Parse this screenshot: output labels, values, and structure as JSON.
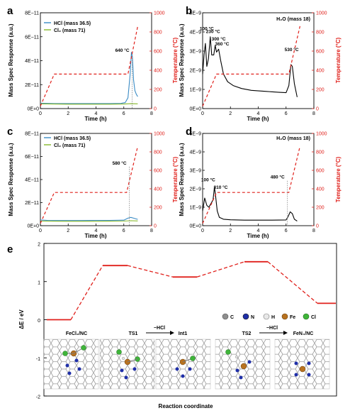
{
  "chart_data": [
    {
      "panel": "a",
      "type": "line",
      "xlabel": "Time (h)",
      "ylabel": "Mass Spec Response (a.u.)",
      "y2label": "Temperature (°C)",
      "xlim": [
        0,
        8
      ],
      "ylim": [
        0,
        8e-11
      ],
      "y2lim": [
        0,
        1000
      ],
      "xticks": [
        "0",
        "2",
        "4",
        "6",
        "8"
      ],
      "yticks": [
        "0E+0",
        "2E−11",
        "4E−11",
        "6E−11",
        "8E−11"
      ],
      "y2ticks": [
        "0",
        "200",
        "400",
        "600",
        "800",
        "1000"
      ],
      "series": [
        {
          "name": "HCl (mass 36.5)",
          "color": "#3a8bc4",
          "axis": "left",
          "x": [
            0,
            0.5,
            1,
            2,
            3,
            4,
            5,
            5.8,
            6.1,
            6.3,
            6.45,
            6.55,
            6.62,
            6.7,
            6.8,
            6.9,
            7.0
          ],
          "y": [
            4.5e-12,
            4.3e-12,
            4.2e-12,
            4.2e-12,
            4.2e-12,
            4.2e-12,
            4.2e-12,
            4.3e-12,
            5e-12,
            9e-12,
            2.8e-11,
            4.7e-11,
            4.3e-11,
            2.4e-11,
            1.5e-11,
            1.2e-11,
            1e-11
          ]
        },
        {
          "name": "Cl2 (mass 71)",
          "color": "#86b92b",
          "axis": "left",
          "x": [
            0,
            1,
            2,
            3,
            4,
            5,
            6,
            6.5,
            7.0
          ],
          "y": [
            4e-12,
            3.8e-12,
            3.7e-12,
            3.7e-12,
            3.7e-12,
            3.7e-12,
            3.8e-12,
            4.1e-12,
            4e-12
          ]
        },
        {
          "name": "Temperature",
          "color": "#e0201b",
          "axis": "right",
          "dash": true,
          "x": [
            0,
            1,
            6.3,
            7.0
          ],
          "y": [
            25,
            360,
            360,
            860
          ]
        }
      ],
      "annotations": [
        {
          "text": "640 °C",
          "x": 6.6,
          "y": 4.75e-11,
          "vline": true
        }
      ]
    },
    {
      "panel": "b",
      "type": "line",
      "xlabel": "Time (h)",
      "ylabel": "Mass Spec Response (a.u.)",
      "y2label": "Temperature (°C)",
      "xlim": [
        0,
        8
      ],
      "ylim": [
        0,
        5e-09
      ],
      "y2lim": [
        0,
        1000
      ],
      "xticks": [
        "0",
        "2",
        "4",
        "6",
        "8"
      ],
      "yticks": [
        "0E+0",
        "1E−9",
        "2E−9",
        "3E−9",
        "4E−9",
        "5E−9"
      ],
      "y2ticks": [
        "0",
        "200",
        "400",
        "600",
        "800",
        "1000"
      ],
      "legend_text": "H₂O (mass 18)",
      "series": [
        {
          "name": "H2O (mass 18)",
          "color": "#000000",
          "axis": "left",
          "x": [
            0,
            0.1,
            0.2,
            0.3,
            0.42,
            0.55,
            0.65,
            0.8,
            0.9,
            1.0,
            1.15,
            1.3,
            1.5,
            1.8,
            2.2,
            2.8,
            3.5,
            4.5,
            5.5,
            6.0,
            6.2,
            6.35,
            6.45,
            6.6,
            6.8
          ],
          "y": [
            1.8e-09,
            2.8e-09,
            3.4e-09,
            2.2e-09,
            2.6e-09,
            3.75e-09,
            2.8e-09,
            2.8e-09,
            3.3e-09,
            2.95e-09,
            3.1e-09,
            2.5e-09,
            1.8e-09,
            1.4e-09,
            1.2e-09,
            1.05e-09,
            9.5e-10,
            9e-10,
            8.5e-10,
            8.3e-10,
            1.2e-09,
            2.3e-09,
            2.2e-09,
            1.3e-09,
            6e-10
          ]
        },
        {
          "name": "Temperature",
          "color": "#e0201b",
          "axis": "right",
          "dash": true,
          "x": [
            0,
            1,
            6.2,
            7.0
          ],
          "y": [
            25,
            360,
            360,
            860
          ]
        }
      ],
      "annotations": [
        {
          "text": "100 °C",
          "x": 0.3,
          "y": 4.1e-09
        },
        {
          "text": "230 °C",
          "x": 0.75,
          "y": 3.95e-09
        },
        {
          "text": "300 °C",
          "x": 1.15,
          "y": 3.55e-09
        },
        {
          "text": "360 °C",
          "x": 1.4,
          "y": 3.3e-09
        },
        {
          "text": "530 °C",
          "x": 6.4,
          "y": 3e-09
        }
      ]
    },
    {
      "panel": "c",
      "type": "line",
      "xlabel": "Time (h)",
      "ylabel": "Mass Spec Response (a.u.)",
      "y2label": "Temperature (°C)",
      "xlim": [
        0,
        8
      ],
      "ylim": [
        0,
        8e-11
      ],
      "y2lim": [
        0,
        1000
      ],
      "xticks": [
        "0",
        "2",
        "4",
        "6",
        "8"
      ],
      "yticks": [
        "0E+0",
        "2E−11",
        "4E−11",
        "6E−11",
        "8E−11"
      ],
      "y2ticks": [
        "0",
        "200",
        "400",
        "600",
        "800",
        "1000"
      ],
      "series": [
        {
          "name": "HCl (mass 36.5)",
          "color": "#3a8bc4",
          "axis": "left",
          "x": [
            0,
            0.5,
            1,
            2,
            3,
            4,
            5,
            6,
            6.3,
            6.5,
            6.7,
            7.0
          ],
          "y": [
            5e-12,
            4.6e-12,
            4.5e-12,
            4.5e-12,
            4.5e-12,
            4.6e-12,
            4.6e-12,
            4.8e-12,
            6.5e-12,
            7.2e-12,
            6.5e-12,
            5.5e-12
          ]
        },
        {
          "name": "Cl2 (mass 71)",
          "color": "#86b92b",
          "axis": "left",
          "x": [
            0,
            1,
            2,
            3,
            4,
            5,
            6,
            6.5,
            7.0
          ],
          "y": [
            4e-12,
            3.9e-12,
            3.8e-12,
            3.8e-12,
            3.8e-12,
            3.9e-12,
            4e-12,
            4.3e-12,
            4.1e-12
          ]
        },
        {
          "name": "Temperature",
          "color": "#e0201b",
          "axis": "right",
          "dash": true,
          "x": [
            0,
            1,
            6.2,
            7.0
          ],
          "y": [
            25,
            360,
            360,
            860
          ]
        }
      ],
      "annotations": [
        {
          "text": "580 °C",
          "x": 6.4,
          "y": 5.3e-11,
          "vline": true
        }
      ]
    },
    {
      "panel": "d",
      "type": "line",
      "xlabel": "Time (h)",
      "ylabel": "Mass Spec Response (a.u.)",
      "y2label": "Temperature (°C)",
      "xlim": [
        0,
        8
      ],
      "ylim": [
        0,
        5e-09
      ],
      "y2lim": [
        0,
        1000
      ],
      "xticks": [
        "0",
        "2",
        "4",
        "6",
        "8"
      ],
      "yticks": [
        "0E+0",
        "1E−9",
        "2E−9",
        "3E−9",
        "4E−9",
        "5E−9"
      ],
      "y2ticks": [
        "0",
        "200",
        "400",
        "600",
        "800",
        "1000"
      ],
      "legend_text": "H₂O (mass 18)",
      "series": [
        {
          "name": "H2O (mass 18)",
          "color": "#000000",
          "axis": "left",
          "x": [
            0,
            0.15,
            0.3,
            0.45,
            0.6,
            0.75,
            0.85,
            0.95,
            1.05,
            1.2,
            1.5,
            2,
            3,
            4,
            5,
            6,
            6.15,
            6.3,
            6.45,
            6.6,
            6.8
          ],
          "y": [
            8e-10,
            1.5e-09,
            1.1e-09,
            1e-09,
            1.2e-09,
            1.4e-09,
            2.1e-09,
            1.5e-09,
            8e-10,
            4.5e-10,
            3.5e-10,
            3.2e-10,
            3e-10,
            3e-10,
            3e-10,
            3.1e-10,
            5e-10,
            7.5e-10,
            6.5e-10,
            3.5e-10,
            2.5e-10
          ]
        },
        {
          "name": "Temperature",
          "color": "#e0201b",
          "axis": "right",
          "dash": true,
          "x": [
            0,
            1,
            6.2,
            7.0
          ],
          "y": [
            25,
            360,
            360,
            860
          ]
        }
      ],
      "annotations": [
        {
          "text": "100 °C",
          "x": 0.4,
          "y": 2.4e-09
        },
        {
          "text": "310 °C",
          "x": 1.3,
          "y": 2e-09
        },
        {
          "text": "480 °C",
          "x": 6.1,
          "y": 2.55e-09,
          "vline": true
        }
      ]
    },
    {
      "panel": "e",
      "type": "line",
      "xlabel": "Reaction coordinate",
      "ylabel": "ΔE / eV",
      "ylim": [
        -2,
        2
      ],
      "yticks": [
        "-2",
        "-1",
        "0",
        "1",
        "2"
      ],
      "states": [
        "FeCl₂/NC",
        "TS1",
        "Int1",
        "TS2",
        "FeN₄/NC"
      ],
      "energies": [
        0,
        1.42,
        1.12,
        1.52,
        0.43
      ],
      "step_labels": [
        "−HCl",
        "−HCl"
      ],
      "atom_legend": [
        {
          "symbol": "C",
          "color": "#8e8e8e"
        },
        {
          "symbol": "N",
          "color": "#1f2fa8"
        },
        {
          "symbol": "H",
          "color": "#e8e8e8"
        },
        {
          "symbol": "Fe",
          "color": "#b8721f"
        },
        {
          "symbol": "Cl",
          "color": "#3fb53a"
        }
      ]
    }
  ],
  "panel_letters": [
    "a",
    "b",
    "c",
    "d",
    "e"
  ],
  "legend_hcl": "HCl (mass 36.5)",
  "legend_cl2": "Cl₂ (mass 71)"
}
